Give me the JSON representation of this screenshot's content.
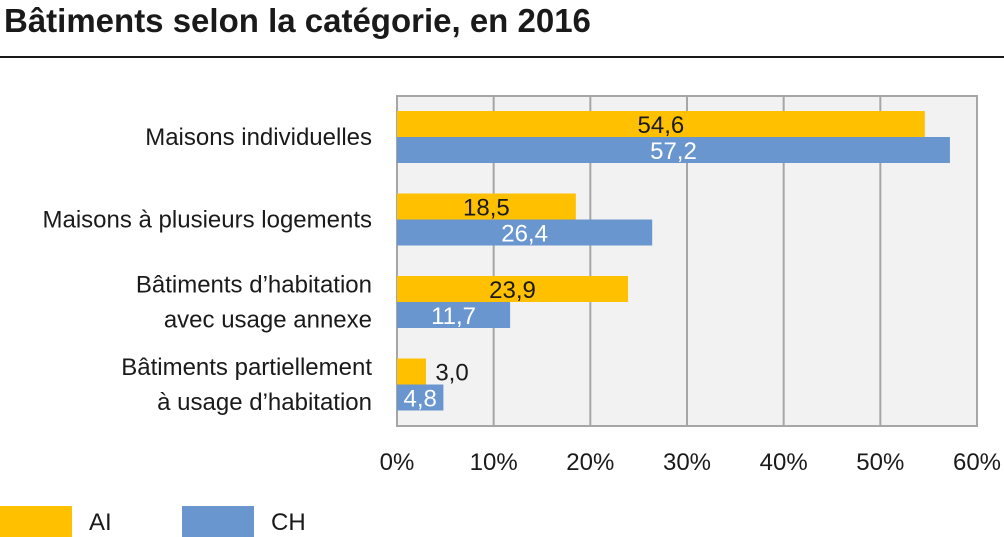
{
  "chart_data": {
    "type": "bar",
    "orientation": "horizontal",
    "title": "Bâtiments selon la catégorie, en 2016",
    "categories": [
      [
        "Maisons individuelles"
      ],
      [
        "Maisons à plusieurs logements"
      ],
      [
        "Bâtiments d’habitation",
        "avec usage annexe"
      ],
      [
        "Bâtiments partiellement",
        "à usage d’habitation"
      ]
    ],
    "series": [
      {
        "name": "AI",
        "color": "#FFC000",
        "values": [
          54.6,
          18.5,
          23.9,
          3.0
        ],
        "labels": [
          "54,6",
          "18,5",
          "23,9",
          "3,0"
        ]
      },
      {
        "name": "CH",
        "color": "#6A96D0",
        "values": [
          57.2,
          26.4,
          11.7,
          4.8
        ],
        "labels": [
          "57,2",
          "26,4",
          "11,7",
          "4,8"
        ]
      }
    ],
    "xlim": [
      0,
      60
    ],
    "xticks": [
      0,
      10,
      20,
      30,
      40,
      50,
      60
    ],
    "xtick_labels": [
      "0%",
      "10%",
      "20%",
      "30%",
      "40%",
      "50%",
      "60%"
    ],
    "xlabel": "",
    "ylabel": "",
    "grid": true,
    "legend_position": "bottom-left",
    "plot_background": "#F2F2F2",
    "grid_color": "#A6A6A6"
  }
}
